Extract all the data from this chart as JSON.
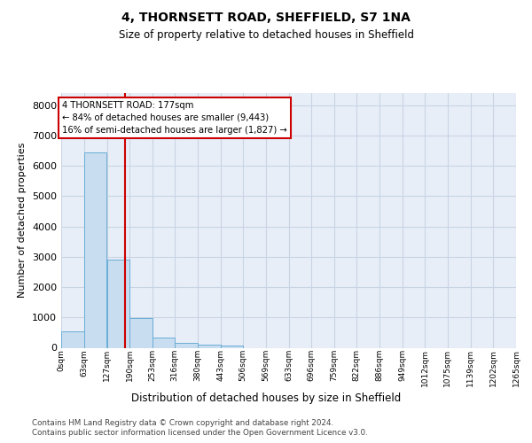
{
  "title1": "4, THORNSETT ROAD, SHEFFIELD, S7 1NA",
  "title2": "Size of property relative to detached houses in Sheffield",
  "xlabel": "Distribution of detached houses by size in Sheffield",
  "ylabel": "Number of detached properties",
  "footer1": "Contains HM Land Registry data © Crown copyright and database right 2024.",
  "footer2": "Contains public sector information licensed under the Open Government Licence v3.0.",
  "bin_edges": [
    0,
    63,
    127,
    190,
    253,
    316,
    380,
    443,
    506,
    569,
    633,
    696,
    759,
    822,
    886,
    949,
    1012,
    1075,
    1139,
    1202,
    1265
  ],
  "bin_labels": [
    "0sqm",
    "63sqm",
    "127sqm",
    "190sqm",
    "253sqm",
    "316sqm",
    "380sqm",
    "443sqm",
    "506sqm",
    "569sqm",
    "633sqm",
    "696sqm",
    "759sqm",
    "822sqm",
    "886sqm",
    "949sqm",
    "1012sqm",
    "1075sqm",
    "1139sqm",
    "1202sqm",
    "1265sqm"
  ],
  "bar_heights": [
    550,
    6450,
    2920,
    970,
    340,
    155,
    100,
    70,
    0,
    0,
    0,
    0,
    0,
    0,
    0,
    0,
    0,
    0,
    0,
    0
  ],
  "bar_color": "#c8ddef",
  "bar_edgecolor": "#6aaed6",
  "grid_color": "#c8d4e4",
  "bg_color": "#e8eef8",
  "property_sqm": 177,
  "vline_color": "#cc0000",
  "annotation_line1": "4 THORNSETT ROAD: 177sqm",
  "annotation_line2": "← 84% of detached houses are smaller (9,443)",
  "annotation_line3": "16% of semi-detached houses are larger (1,827) →",
  "annotation_box_edgecolor": "#cc0000",
  "ylim": [
    0,
    8400
  ],
  "yticks": [
    0,
    1000,
    2000,
    3000,
    4000,
    5000,
    6000,
    7000,
    8000
  ]
}
